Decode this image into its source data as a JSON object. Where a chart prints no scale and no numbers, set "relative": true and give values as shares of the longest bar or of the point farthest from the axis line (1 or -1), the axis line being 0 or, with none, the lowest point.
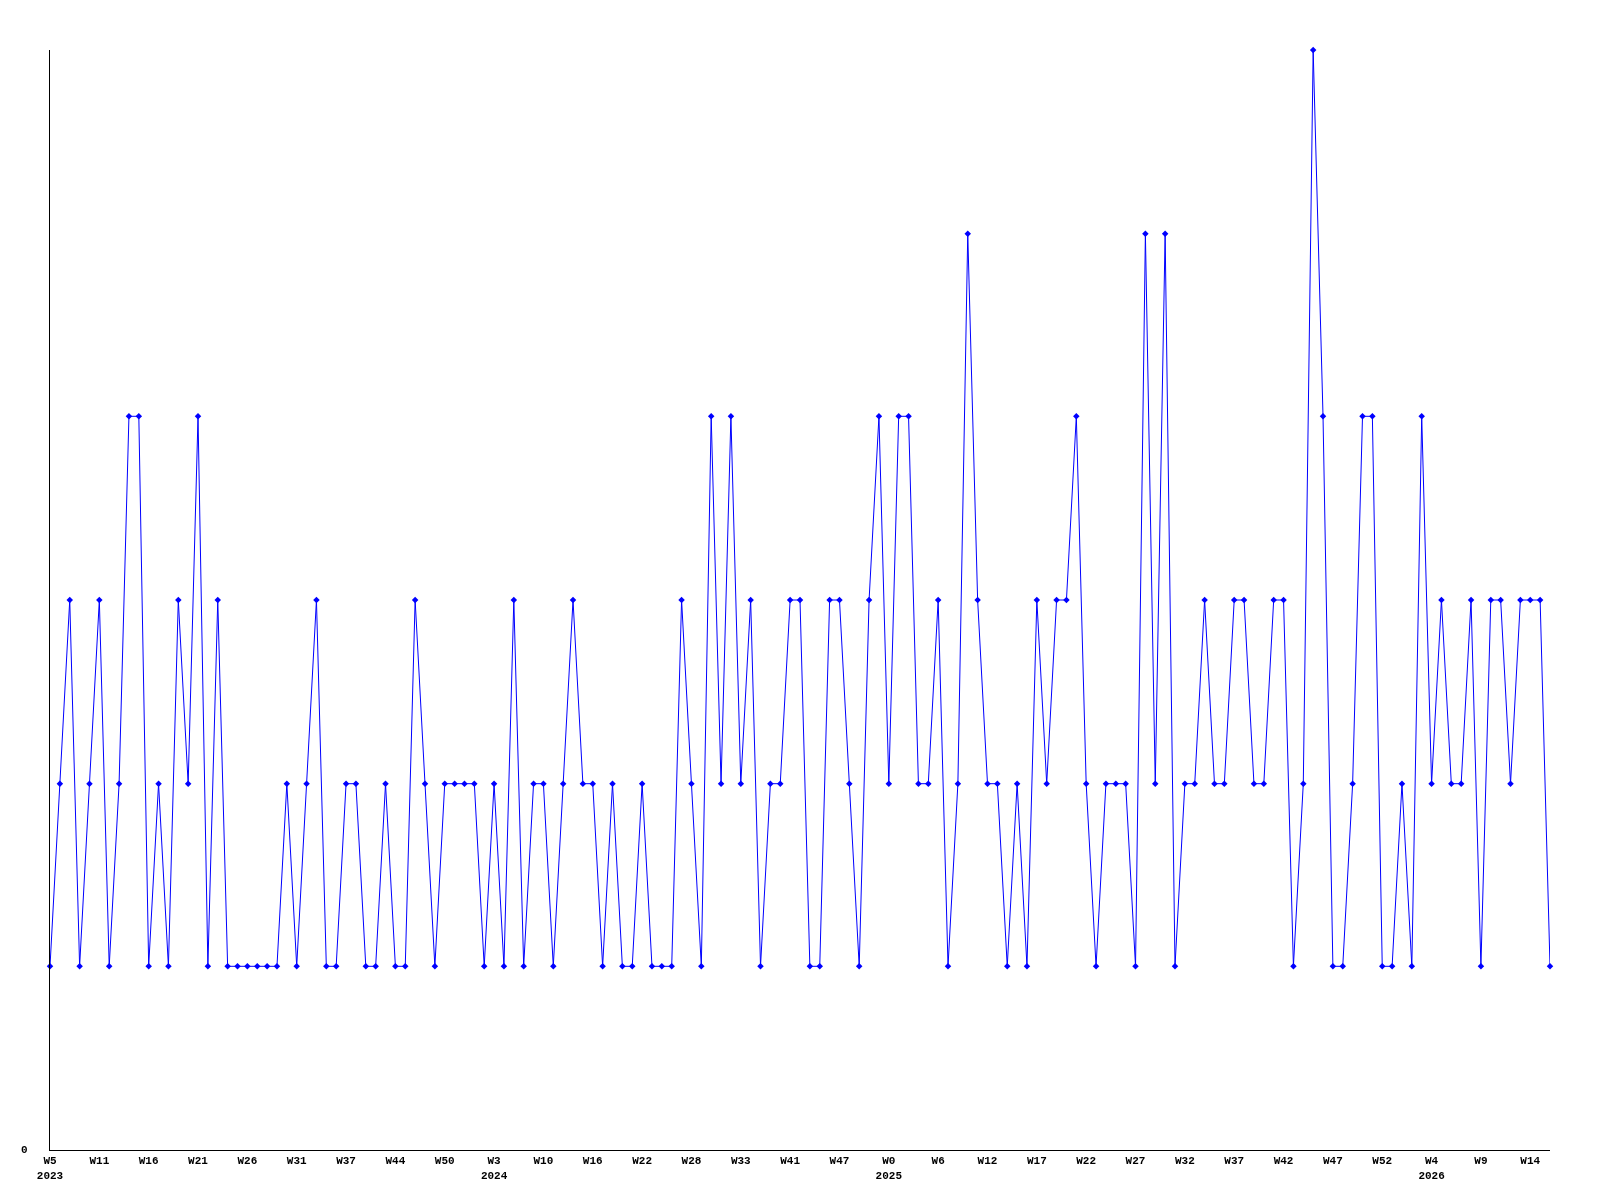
{
  "chart_data": {
    "type": "line",
    "relative": true,
    "marker": "diamond",
    "line_style": "solid",
    "grid": false,
    "legend": false,
    "annotations": [
      "0"
    ],
    "categories": [
      "W5\n2023",
      null,
      null,
      null,
      null,
      "W11",
      null,
      null,
      null,
      null,
      "W16",
      null,
      null,
      null,
      null,
      "W21",
      null,
      null,
      null,
      null,
      "W26",
      null,
      null,
      null,
      null,
      "W31",
      null,
      null,
      null,
      null,
      "W37",
      null,
      null,
      null,
      null,
      "W44",
      null,
      null,
      null,
      null,
      "W50",
      null,
      null,
      null,
      null,
      "W3\n2024",
      null,
      null,
      null,
      null,
      "W10",
      null,
      null,
      null,
      null,
      "W16",
      null,
      null,
      null,
      null,
      "W22",
      null,
      null,
      null,
      null,
      "W28",
      null,
      null,
      null,
      null,
      "W33",
      null,
      null,
      null,
      null,
      "W41",
      null,
      null,
      null,
      null,
      "W47",
      null,
      null,
      null,
      null,
      "W0\n2025",
      null,
      null,
      null,
      null,
      "W6",
      null,
      null,
      null,
      null,
      "W12",
      null,
      null,
      null,
      null,
      "W17",
      null,
      null,
      null,
      null,
      "W22",
      null,
      null,
      null,
      null,
      "W27",
      null,
      null,
      null,
      null,
      "W32",
      null,
      null,
      null,
      null,
      "W37",
      null,
      null,
      null,
      null,
      "W42",
      null,
      null,
      null,
      null,
      "W47",
      null,
      null,
      null,
      null,
      "W52",
      null,
      null,
      null,
      null,
      "W4\n2026",
      null,
      null,
      null,
      null,
      "W9",
      null,
      null,
      null,
      null,
      "W14",
      null,
      null
    ],
    "series": [
      {
        "color": "#0000ff",
        "values": [
          0.167,
          0.333,
          0.5,
          0.167,
          0.333,
          0.5,
          0.167,
          0.333,
          0.667,
          0.667,
          0.167,
          0.333,
          0.167,
          0.5,
          0.333,
          0.667,
          0.167,
          0.5,
          0.167,
          0.167,
          0.167,
          0.167,
          0.167,
          0.167,
          0.333,
          0.167,
          0.333,
          0.5,
          0.167,
          0.167,
          0.333,
          0.333,
          0.167,
          0.167,
          0.333,
          0.167,
          0.167,
          0.5,
          0.333,
          0.167,
          0.333,
          0.333,
          0.333,
          0.333,
          0.167,
          0.333,
          0.167,
          0.5,
          0.167,
          0.333,
          0.333,
          0.167,
          0.333,
          0.5,
          0.333,
          0.333,
          0.167,
          0.333,
          0.167,
          0.167,
          0.333,
          0.167,
          0.167,
          0.167,
          0.5,
          0.333,
          0.167,
          0.667,
          0.333,
          0.667,
          0.333,
          0.5,
          0.167,
          0.333,
          0.333,
          0.5,
          0.5,
          0.167,
          0.167,
          0.5,
          0.5,
          0.333,
          0.167,
          0.5,
          0.667,
          0.333,
          0.667,
          0.667,
          0.333,
          0.333,
          0.5,
          0.167,
          0.333,
          0.833,
          0.5,
          0.333,
          0.333,
          0.167,
          0.333,
          0.167,
          0.5,
          0.333,
          0.5,
          0.5,
          0.667,
          0.333,
          0.167,
          0.333,
          0.333,
          0.333,
          0.167,
          0.833,
          0.333,
          0.833,
          0.167,
          0.333,
          0.333,
          0.5,
          0.333,
          0.333,
          0.5,
          0.5,
          0.333,
          0.333,
          0.5,
          0.5,
          0.167,
          0.333,
          1,
          0.667,
          0.167,
          0.167,
          0.333,
          0.667,
          0.667,
          0.167,
          0.167,
          0.333,
          0.167,
          0.667,
          0.333,
          0.5,
          0.333,
          0.333,
          0.5,
          0.167,
          0.5,
          0.5,
          0.333,
          0.5,
          0.5,
          0.5,
          0.167
        ]
      }
    ]
  }
}
